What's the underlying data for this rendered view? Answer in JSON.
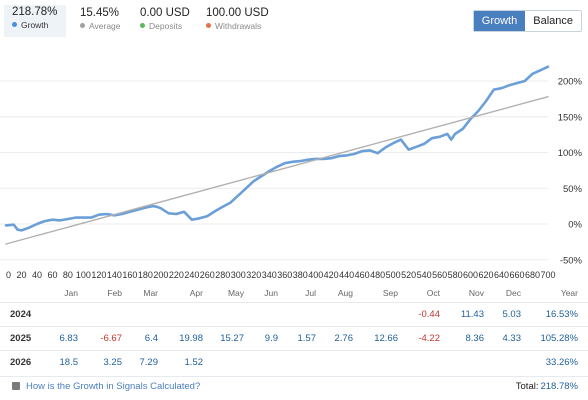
{
  "stats": [
    {
      "value": "218.78%",
      "label": "Growth",
      "color": "#4a90d9"
    },
    {
      "value": "15.45%",
      "label": "Average",
      "color": "#a0a0a0"
    },
    {
      "value": "0.00 USD",
      "label": "Deposits",
      "color": "#5cb85c"
    },
    {
      "value": "100.00 USD",
      "label": "Withdrawals",
      "color": "#e8704a"
    }
  ],
  "toggle": {
    "growth": "Growth",
    "balance": "Balance"
  },
  "chart_data": {
    "type": "line",
    "x_ticks": [
      "0",
      "20",
      "40",
      "60",
      "80",
      "100",
      "120",
      "140",
      "160",
      "180",
      "200",
      "220",
      "240",
      "260",
      "280",
      "300",
      "320",
      "340",
      "360",
      "380",
      "400",
      "420",
      "440",
      "460",
      "480",
      "500",
      "520",
      "540",
      "560",
      "580",
      "600",
      "620",
      "640",
      "660",
      "680",
      "700"
    ],
    "y_ticks": [
      "200%",
      "150%",
      "100%",
      "50%",
      "0%",
      "-50%"
    ],
    "ylim": [
      -50,
      240
    ],
    "xlim": [
      0,
      700
    ],
    "series": [
      {
        "role": "growth",
        "color": "#6a9fd8",
        "x": [
          0,
          10,
          15,
          20,
          30,
          40,
          50,
          60,
          70,
          80,
          90,
          100,
          110,
          120,
          130,
          140,
          150,
          160,
          170,
          180,
          190,
          195,
          200,
          210,
          220,
          230,
          240,
          250,
          260,
          270,
          280,
          290,
          300,
          310,
          320,
          330,
          340,
          350,
          360,
          370,
          380,
          390,
          400,
          410,
          420,
          430,
          440,
          450,
          460,
          470,
          480,
          490,
          500,
          510,
          520,
          530,
          540,
          550,
          560,
          570,
          575,
          580,
          590,
          600,
          610,
          620,
          630,
          640,
          650,
          660,
          670,
          680,
          690,
          700
        ],
        "y": [
          -2,
          -1,
          -8,
          -9,
          -5,
          0,
          4,
          6,
          5,
          7,
          9,
          9,
          9,
          13,
          14,
          12,
          14,
          17,
          20,
          23,
          25,
          24,
          22,
          15,
          14,
          17,
          6,
          8,
          11,
          18,
          24,
          30,
          40,
          50,
          60,
          67,
          74,
          80,
          85,
          87,
          88,
          90,
          91,
          91,
          92,
          95,
          96,
          98,
          102,
          103,
          99,
          107,
          113,
          118,
          104,
          108,
          112,
          120,
          122,
          126,
          118,
          126,
          133,
          147,
          158,
          172,
          188,
          190,
          194,
          197,
          200,
          210,
          215,
          220
        ]
      },
      {
        "role": "average",
        "color": "#b0b0b0",
        "x": [
          0,
          700
        ],
        "y": [
          -28,
          178
        ]
      }
    ]
  },
  "table": {
    "headers": [
      "Jan",
      "Feb",
      "Mar",
      "Apr",
      "May",
      "Jun",
      "Jul",
      "Aug",
      "Sep",
      "Oct",
      "Nov",
      "Dec",
      "Year"
    ],
    "rows": [
      {
        "year": "2024",
        "cells": [
          "",
          "",
          "",
          "",
          "",
          "",
          "",
          "",
          "",
          "-0.44",
          "11.43",
          "5.03",
          "16.53%"
        ]
      },
      {
        "year": "2025",
        "cells": [
          "6.83",
          "-6.67",
          "6.4",
          "19.98",
          "15.27",
          "9.9",
          "1.57",
          "2.76",
          "12.66",
          "-4.22",
          "8.36",
          "4.33",
          "105.28%"
        ]
      },
      {
        "year": "2026",
        "cells": [
          "18.5",
          "3.25",
          "7.29",
          "1.52",
          "",
          "",
          "",
          "",
          "",
          "",
          "",
          "",
          "33.26%"
        ]
      }
    ]
  },
  "footer": {
    "help": "How is the Growth in Signals Calculated?",
    "total_label": "Total:",
    "total_value": "218.78%"
  }
}
